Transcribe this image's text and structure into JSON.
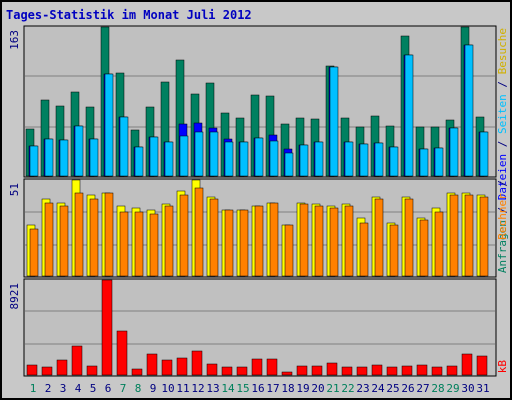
{
  "title": "Tages-Statistik im Monat Juli 2012",
  "chart_data": [
    {
      "type": "bar",
      "panel": "top",
      "ymax_label": "163",
      "ylim": [
        0,
        163
      ],
      "categories": [
        "1",
        "2",
        "3",
        "4",
        "5",
        "6",
        "7",
        "8",
        "9",
        "10",
        "11",
        "12",
        "13",
        "14",
        "15",
        "16",
        "17",
        "18",
        "19",
        "20",
        "21",
        "22",
        "23",
        "24",
        "25",
        "26",
        "27",
        "28",
        "29",
        "30",
        "31"
      ],
      "series": [
        {
          "name": "Anfragen",
          "color": "#008060",
          "values": [
            51,
            83,
            77,
            92,
            75,
            163,
            113,
            50,
            75,
            103,
            127,
            90,
            102,
            69,
            63,
            89,
            87,
            57,
            63,
            62,
            120,
            63,
            54,
            66,
            55,
            153,
            54,
            54,
            61,
            163,
            64
          ]
        },
        {
          "name": "Dateien",
          "color": "#0000ff",
          "values": [
            33,
            40,
            39,
            55,
            41,
            112,
            65,
            32,
            43,
            37,
            57,
            58,
            53,
            41,
            37,
            42,
            45,
            30,
            34,
            37,
            119,
            37,
            35,
            36,
            32,
            132,
            30,
            31,
            53,
            143,
            48
          ]
        },
        {
          "name": "Seiten",
          "color": "#00c0ff",
          "values": [
            33,
            40,
            39,
            55,
            41,
            112,
            65,
            32,
            43,
            37,
            44,
            48,
            48,
            37,
            37,
            42,
            38,
            25,
            34,
            37,
            119,
            37,
            35,
            36,
            32,
            132,
            30,
            31,
            53,
            143,
            48
          ]
        }
      ]
    },
    {
      "type": "bar",
      "panel": "middle",
      "ymax_label": "51",
      "ylim": [
        0,
        51
      ],
      "series": [
        {
          "name": "Besuche",
          "color": "#ffff00",
          "values": [
            27,
            41,
            39,
            51,
            43,
            44,
            37,
            36,
            35,
            38,
            45,
            51,
            42,
            35,
            35,
            37,
            39,
            27,
            39,
            38,
            37,
            38,
            31,
            42,
            28,
            42,
            31,
            36,
            44,
            44,
            43
          ]
        },
        {
          "name": "Rechner",
          "color": "#ff8000",
          "values": [
            25,
            39,
            37,
            44,
            41,
            44,
            34,
            34,
            33,
            37,
            43,
            47,
            41,
            35,
            35,
            37,
            39,
            27,
            38,
            37,
            36,
            37,
            28,
            41,
            27,
            41,
            30,
            34,
            43,
            43,
            42
          ]
        }
      ]
    },
    {
      "type": "bar",
      "panel": "bottom",
      "ymax_label": "8921",
      "ylim": [
        0,
        8921
      ],
      "series": [
        {
          "name": "kB",
          "color": "#ff0000",
          "values": [
            900,
            780,
            1390,
            2680,
            800,
            8921,
            4150,
            540,
            1930,
            1430,
            1560,
            2230,
            1030,
            740,
            790,
            1460,
            1460,
            300,
            860,
            860,
            1150,
            780,
            760,
            980,
            750,
            850,
            900,
            760,
            880,
            1960,
            1800
          ]
        }
      ]
    }
  ],
  "day_label_colors": {
    "weekday": "#000080",
    "weekend": "#00805c"
  },
  "weekend_days": [
    1,
    7,
    8,
    14,
    15,
    21,
    22,
    28,
    29
  ],
  "right_labels": {
    "top": [
      {
        "text": "Anfragen",
        "color": "#008060"
      },
      {
        "text": " / ",
        "color": "#000080"
      },
      {
        "text": "Dateien",
        "color": "#0000ff"
      },
      {
        "text": " / ",
        "color": "#000080"
      },
      {
        "text": "Seiten",
        "color": "#00c0ff"
      },
      {
        "text": " / ",
        "color": "#000080"
      },
      {
        "text": "Besuche",
        "color": "#d0b000"
      }
    ],
    "middle": [
      {
        "text": "Rechner",
        "color": "#ff8000"
      },
      {
        "text": " / ",
        "color": "#000080"
      }
    ],
    "bottom": [
      {
        "text": "kB",
        "color": "#ff0000"
      }
    ]
  },
  "colors": {
    "title": "#0000c0",
    "frame": "#c8c8c8",
    "plot_bg": "#c0c0c0",
    "gridline": "#808080",
    "axis_label": "#000080"
  }
}
